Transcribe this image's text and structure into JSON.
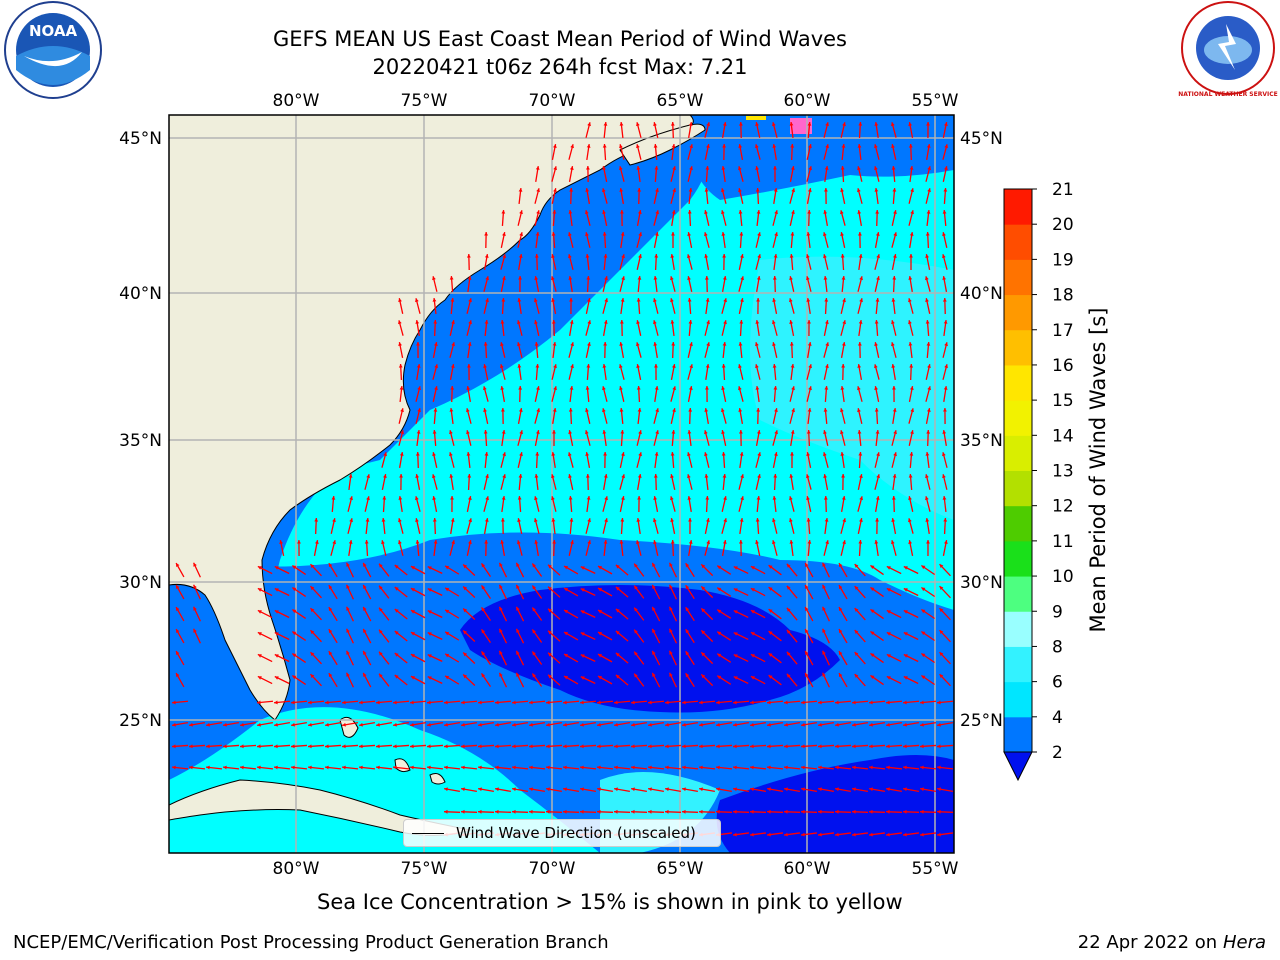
{
  "title": {
    "line1": "GEFS MEAN US East Coast Mean Period of Wind Waves",
    "line2": "20220421 t06z 264h fcst   Max: 7.21"
  },
  "map": {
    "lon_ticks": [
      "80°W",
      "75°W",
      "70°W",
      "65°W",
      "60°W",
      "55°W"
    ],
    "lat_ticks": [
      "45°N",
      "40°N",
      "35°N",
      "30°N",
      "25°N"
    ],
    "legend_label": "Wind Wave Direction (unscaled)",
    "land_color": "#efeedc",
    "arrow_color": "#ff0000",
    "grid_color": "#b3b3b3"
  },
  "colorbar": {
    "label": "Mean Period of Wind Waves [s]",
    "ticks": [
      "2",
      "4",
      "6",
      "8",
      "9",
      "10",
      "11",
      "12",
      "13",
      "14",
      "15",
      "16",
      "17",
      "18",
      "19",
      "20",
      "21"
    ],
    "colors": [
      "#0077ff",
      "#00e6ff",
      "#33f2ff",
      "#99ffff",
      "#4dff80",
      "#1ae01a",
      "#4ecc00",
      "#b3e000",
      "#d9ee00",
      "#f2f200",
      "#ffe600",
      "#ffbf00",
      "#ff9900",
      "#ff7300",
      "#ff4d00",
      "#ff1a00",
      "#ff0000"
    ],
    "extend_color": "#0011ee"
  },
  "footer": {
    "subtitle": "Sea Ice Concentration > 15% is shown in pink to yellow",
    "left": "NCEP/EMC/Verification Post Processing Product Generation Branch",
    "right_prefix": "22 Apr 2022 on ",
    "right_host": "Hera"
  },
  "logos": {
    "left": "noaa-logo",
    "left_text": "NOAA",
    "right": "nws-logo",
    "right_text": "NATIONAL WEATHER SERVICE"
  }
}
